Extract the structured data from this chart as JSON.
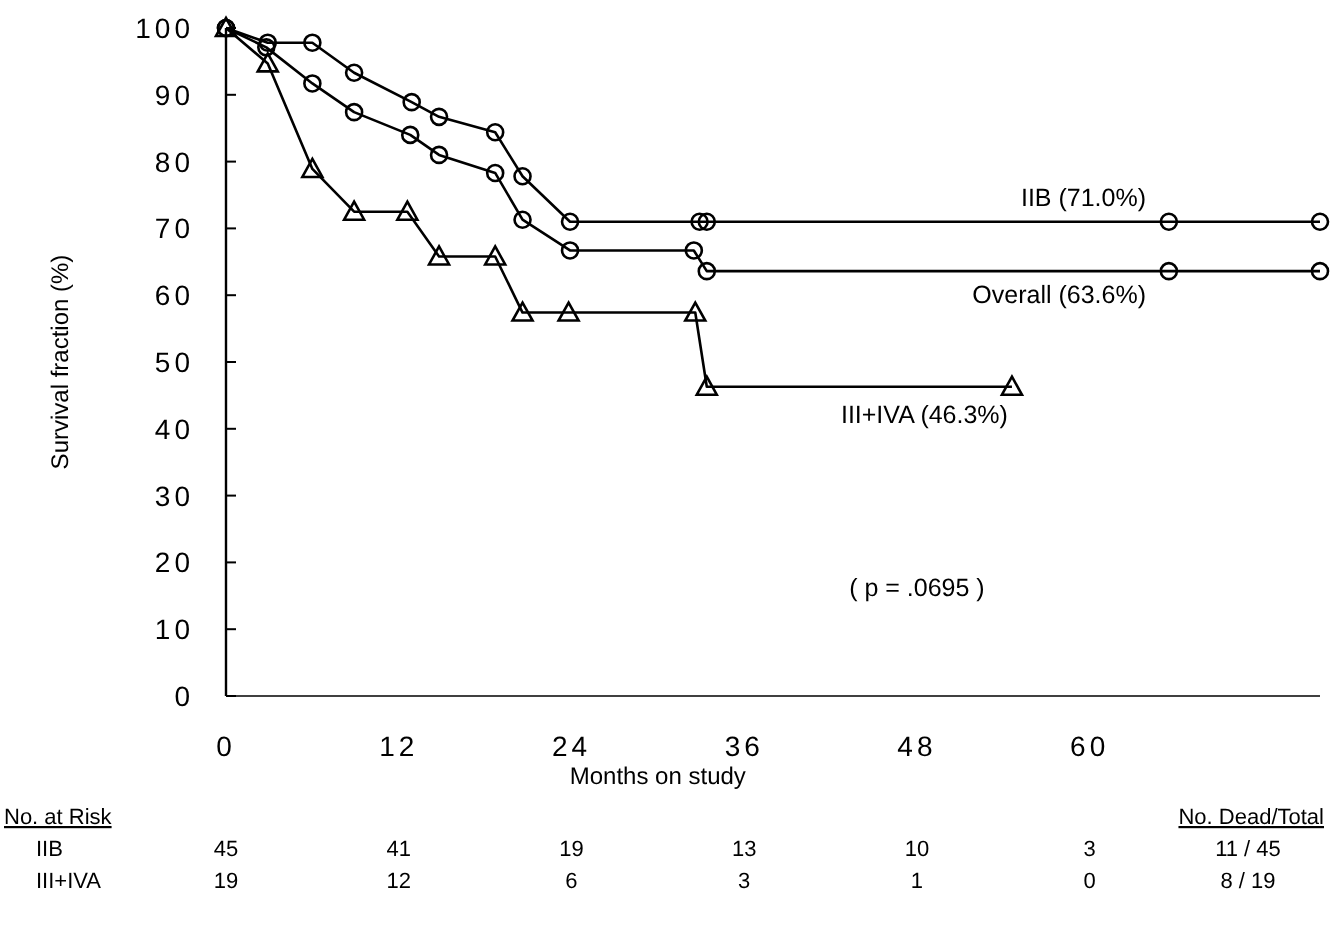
{
  "chart_data": {
    "type": "line",
    "xlabel": "Months on study",
    "ylabel": "Survival fraction (%)",
    "xlim": [
      0,
      76
    ],
    "xticks": [
      0,
      12,
      24,
      36,
      48,
      60
    ],
    "ylim": [
      0,
      100
    ],
    "yticks": [
      0,
      10,
      20,
      30,
      40,
      50,
      60,
      70,
      80,
      90,
      100
    ],
    "grid": false,
    "series": [
      {
        "name": "IIB (71.0%)",
        "color": "#000000",
        "marker": "circle",
        "x": [
          0,
          2.9,
          6,
          8.9,
          12.9,
          14.8,
          18.7,
          20.6,
          23.9,
          32.9,
          33.4,
          65.5,
          76
        ],
        "values": [
          100,
          97.8,
          97.8,
          93.3,
          88.9,
          86.7,
          84.4,
          77.8,
          71,
          71,
          71,
          71,
          71
        ]
      },
      {
        "name": "Overall (63.6%)",
        "color": "#000000",
        "marker": "circle",
        "x": [
          0,
          2.8,
          6,
          8.9,
          12.8,
          14.8,
          18.7,
          20.6,
          23.9,
          32.5,
          33.4,
          65.5,
          76
        ],
        "values": [
          100,
          97.1,
          91.7,
          87.4,
          84,
          81,
          78.3,
          71.3,
          66.7,
          66.7,
          63.6,
          63.6,
          63.6
        ]
      },
      {
        "name": "III+IVA (46.3%)",
        "color": "#000000",
        "marker": "triangle",
        "x": [
          0,
          2.9,
          6,
          8.9,
          12.6,
          14.8,
          18.7,
          20.6,
          23.8,
          32.6,
          33.4,
          54.6
        ],
        "values": [
          100,
          94.7,
          78.9,
          72.5,
          72.5,
          65.8,
          65.8,
          57.4,
          57.4,
          57.4,
          46.3,
          46.3
        ]
      }
    ],
    "annotations": [
      "( p = .0695 )",
      "No. at Risk",
      "No. Dead/Total",
      "IIB",
      "45",
      "41",
      "19",
      "13",
      "10",
      "3",
      "11 / 45",
      "III+IVA",
      "19",
      "12",
      "6",
      "3",
      "1",
      "0",
      "8 / 19"
    ]
  }
}
